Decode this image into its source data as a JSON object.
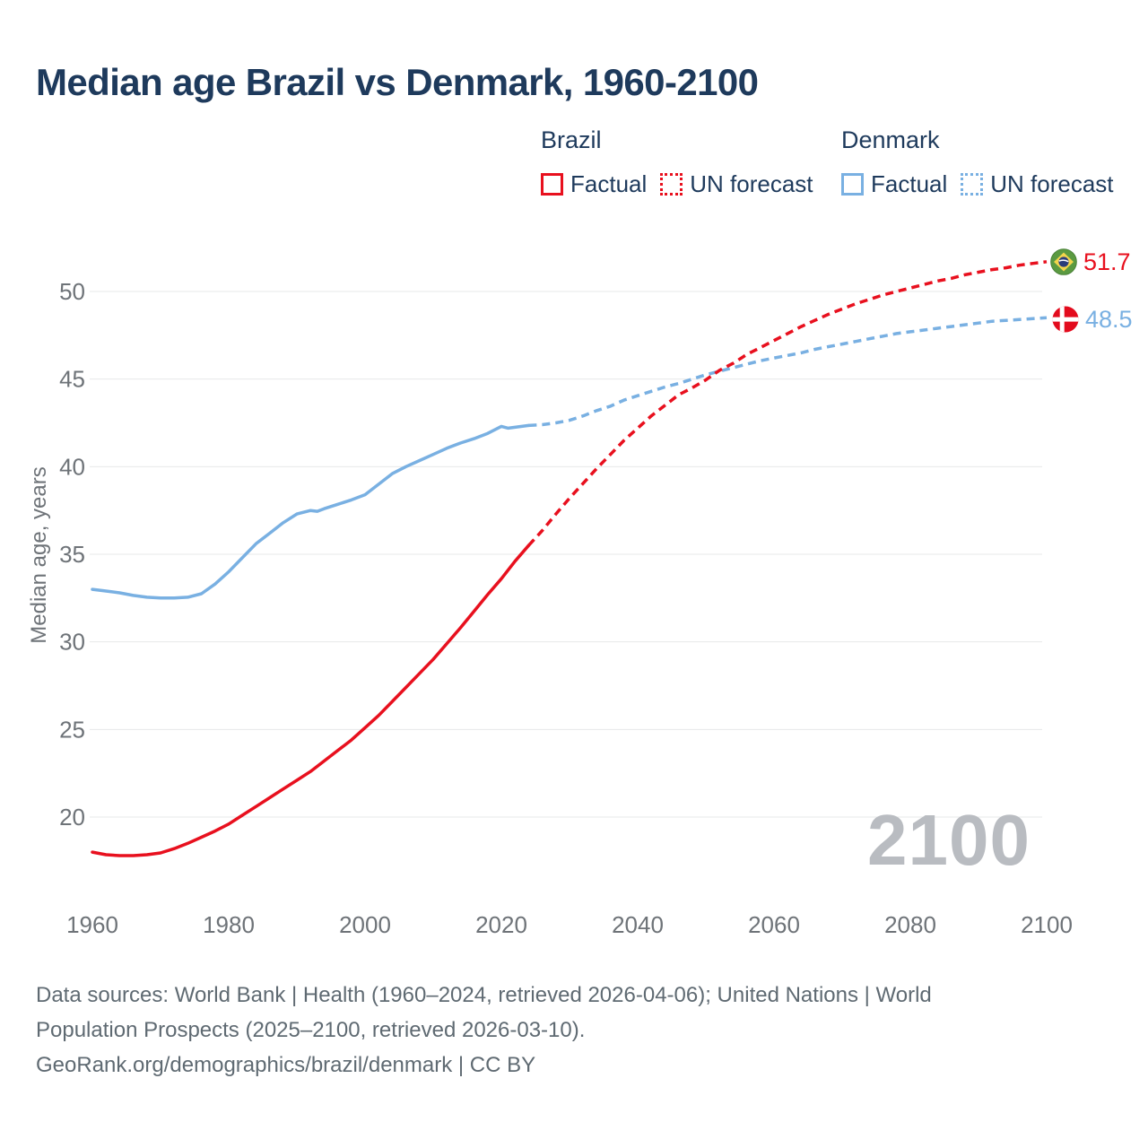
{
  "title": "Median age Brazil vs Denmark, 1960-2100",
  "watermark": "2100",
  "legend": {
    "groups": [
      {
        "name": "Brazil",
        "color": "#e8101e",
        "items": [
          {
            "label": "Factual",
            "style": "solid"
          },
          {
            "label": "UN forecast",
            "style": "dotted"
          }
        ]
      },
      {
        "name": "Denmark",
        "color": "#79b0e2",
        "items": [
          {
            "label": "Factual",
            "style": "solid"
          },
          {
            "label": "UN forecast",
            "style": "dotted"
          }
        ]
      }
    ]
  },
  "end_labels": [
    {
      "country": "Brazil",
      "flag": "brazil-flag",
      "value": "51.7",
      "color": "#e8101e"
    },
    {
      "country": "Denmark",
      "flag": "denmark-flag",
      "value": "48.5",
      "color": "#79b0e2"
    }
  ],
  "footer": {
    "line1": "Data sources: World Bank | Health (1960–2024, retrieved 2026-04-06); United Nations | World",
    "line2": "Population Prospects (2025–2100, retrieved 2026-03-10).",
    "line3": "GeoRank.org/demographics/brazil/denmark | CC BY"
  },
  "chart_data": {
    "type": "line",
    "title": "Median age Brazil vs Denmark, 1960-2100",
    "xlabel": "",
    "ylabel": "Median age, years",
    "xlim": [
      1960,
      2100
    ],
    "ylim": [
      17.5,
      52
    ],
    "x_ticks": [
      1960,
      1980,
      2000,
      2020,
      2040,
      2060,
      2080,
      2100
    ],
    "y_ticks": [
      20,
      25,
      30,
      35,
      40,
      45,
      50
    ],
    "grid": "horizontal-only",
    "legend_position": "top-right",
    "series": [
      {
        "id": "denmark-factual",
        "name": "Denmark — Factual",
        "color": "#79b0e2",
        "style": "solid",
        "points": [
          [
            1960,
            33.0
          ],
          [
            1962,
            32.9
          ],
          [
            1964,
            32.8
          ],
          [
            1966,
            32.65
          ],
          [
            1968,
            32.55
          ],
          [
            1970,
            32.5
          ],
          [
            1972,
            32.5
          ],
          [
            1974,
            32.55
          ],
          [
            1976,
            32.75
          ],
          [
            1978,
            33.3
          ],
          [
            1980,
            34.0
          ],
          [
            1982,
            34.8
          ],
          [
            1984,
            35.6
          ],
          [
            1986,
            36.2
          ],
          [
            1988,
            36.8
          ],
          [
            1990,
            37.3
          ],
          [
            1992,
            37.5
          ],
          [
            1993,
            37.45
          ],
          [
            1994,
            37.6
          ],
          [
            1996,
            37.85
          ],
          [
            1998,
            38.1
          ],
          [
            2000,
            38.4
          ],
          [
            2002,
            39.0
          ],
          [
            2004,
            39.6
          ],
          [
            2006,
            40.0
          ],
          [
            2008,
            40.35
          ],
          [
            2010,
            40.7
          ],
          [
            2012,
            41.05
          ],
          [
            2014,
            41.35
          ],
          [
            2016,
            41.6
          ],
          [
            2018,
            41.9
          ],
          [
            2020,
            42.3
          ],
          [
            2021,
            42.2
          ],
          [
            2022,
            42.25
          ],
          [
            2024,
            42.35
          ]
        ]
      },
      {
        "id": "denmark-forecast",
        "name": "Denmark — UN forecast",
        "color": "#79b0e2",
        "style": "dashed",
        "points": [
          [
            2024,
            42.35
          ],
          [
            2026,
            42.4
          ],
          [
            2028,
            42.5
          ],
          [
            2030,
            42.65
          ],
          [
            2032,
            42.9
          ],
          [
            2034,
            43.2
          ],
          [
            2036,
            43.45
          ],
          [
            2038,
            43.8
          ],
          [
            2040,
            44.05
          ],
          [
            2042,
            44.3
          ],
          [
            2044,
            44.55
          ],
          [
            2046,
            44.75
          ],
          [
            2048,
            45.0
          ],
          [
            2050,
            45.25
          ],
          [
            2052,
            45.45
          ],
          [
            2054,
            45.65
          ],
          [
            2056,
            45.85
          ],
          [
            2058,
            46.05
          ],
          [
            2060,
            46.2
          ],
          [
            2062,
            46.35
          ],
          [
            2064,
            46.5
          ],
          [
            2066,
            46.7
          ],
          [
            2068,
            46.85
          ],
          [
            2070,
            47.0
          ],
          [
            2072,
            47.15
          ],
          [
            2074,
            47.3
          ],
          [
            2076,
            47.45
          ],
          [
            2078,
            47.6
          ],
          [
            2080,
            47.7
          ],
          [
            2082,
            47.8
          ],
          [
            2084,
            47.9
          ],
          [
            2086,
            48.0
          ],
          [
            2088,
            48.1
          ],
          [
            2090,
            48.2
          ],
          [
            2092,
            48.3
          ],
          [
            2094,
            48.35
          ],
          [
            2096,
            48.4
          ],
          [
            2098,
            48.45
          ],
          [
            2100,
            48.5
          ]
        ]
      },
      {
        "id": "brazil-factual",
        "name": "Brazil — Factual",
        "color": "#e8101e",
        "style": "solid",
        "points": [
          [
            1960,
            18.0
          ],
          [
            1962,
            17.85
          ],
          [
            1964,
            17.8
          ],
          [
            1966,
            17.8
          ],
          [
            1968,
            17.85
          ],
          [
            1970,
            17.95
          ],
          [
            1972,
            18.2
          ],
          [
            1974,
            18.5
          ],
          [
            1976,
            18.85
          ],
          [
            1978,
            19.2
          ],
          [
            1980,
            19.6
          ],
          [
            1982,
            20.1
          ],
          [
            1984,
            20.6
          ],
          [
            1986,
            21.1
          ],
          [
            1988,
            21.6
          ],
          [
            1990,
            22.1
          ],
          [
            1992,
            22.6
          ],
          [
            1994,
            23.2
          ],
          [
            1996,
            23.8
          ],
          [
            1998,
            24.4
          ],
          [
            2000,
            25.1
          ],
          [
            2002,
            25.8
          ],
          [
            2004,
            26.6
          ],
          [
            2006,
            27.4
          ],
          [
            2008,
            28.2
          ],
          [
            2010,
            29.0
          ],
          [
            2012,
            29.9
          ],
          [
            2014,
            30.8
          ],
          [
            2016,
            31.75
          ],
          [
            2018,
            32.7
          ],
          [
            2020,
            33.6
          ],
          [
            2022,
            34.6
          ],
          [
            2024,
            35.5
          ]
        ]
      },
      {
        "id": "brazil-forecast",
        "name": "Brazil — UN forecast",
        "color": "#e8101e",
        "style": "dashed",
        "points": [
          [
            2024,
            35.5
          ],
          [
            2026,
            36.35
          ],
          [
            2028,
            37.3
          ],
          [
            2030,
            38.2
          ],
          [
            2032,
            39.05
          ],
          [
            2034,
            39.9
          ],
          [
            2036,
            40.7
          ],
          [
            2038,
            41.5
          ],
          [
            2040,
            42.2
          ],
          [
            2042,
            42.9
          ],
          [
            2044,
            43.5
          ],
          [
            2046,
            44.1
          ],
          [
            2048,
            44.5
          ],
          [
            2050,
            44.95
          ],
          [
            2052,
            45.5
          ],
          [
            2054,
            45.9
          ],
          [
            2056,
            46.4
          ],
          [
            2058,
            46.8
          ],
          [
            2060,
            47.2
          ],
          [
            2062,
            47.6
          ],
          [
            2064,
            48.0
          ],
          [
            2066,
            48.35
          ],
          [
            2068,
            48.7
          ],
          [
            2070,
            49.0
          ],
          [
            2072,
            49.3
          ],
          [
            2074,
            49.55
          ],
          [
            2076,
            49.8
          ],
          [
            2078,
            50.0
          ],
          [
            2080,
            50.2
          ],
          [
            2082,
            50.4
          ],
          [
            2084,
            50.6
          ],
          [
            2086,
            50.75
          ],
          [
            2088,
            50.95
          ],
          [
            2090,
            51.1
          ],
          [
            2092,
            51.25
          ],
          [
            2094,
            51.35
          ],
          [
            2096,
            51.5
          ],
          [
            2098,
            51.6
          ],
          [
            2100,
            51.7
          ]
        ]
      }
    ]
  }
}
